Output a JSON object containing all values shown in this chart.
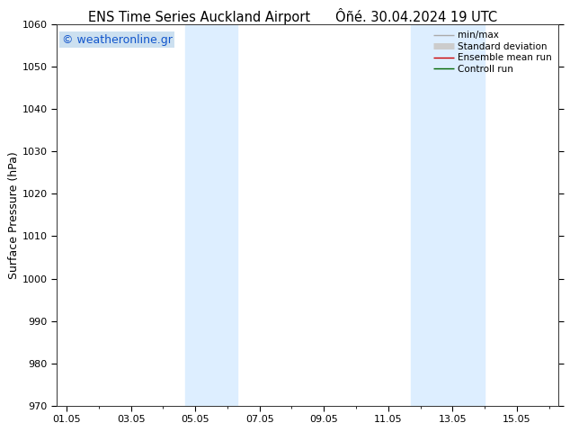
{
  "title_left": "ENS Time Series Auckland Airport",
  "title_right": "Ôñé. 30.04.2024 19 UTC",
  "ylabel": "Surface Pressure (hPa)",
  "ylim": [
    970,
    1060
  ],
  "yticks": [
    970,
    980,
    990,
    1000,
    1010,
    1020,
    1030,
    1040,
    1050,
    1060
  ],
  "xtick_labels": [
    "01.05",
    "03.05",
    "05.05",
    "07.05",
    "09.05",
    "11.05",
    "13.05",
    "15.05"
  ],
  "xtick_positions": [
    0,
    2,
    4,
    6,
    8,
    10,
    12,
    14
  ],
  "xlim": [
    -0.3,
    15.3
  ],
  "shade_bands": [
    {
      "x_start": 3.7,
      "x_end": 5.3,
      "color": "#ddeeff"
    },
    {
      "x_start": 10.7,
      "x_end": 13.0,
      "color": "#ddeeff"
    }
  ],
  "watermark": "© weatheronline.gr",
  "watermark_color": "#1155cc",
  "watermark_bg": "#cce0f0",
  "legend_entries": [
    {
      "label": "min/max",
      "color": "#aaaaaa",
      "lw": 1.0
    },
    {
      "label": "Standard deviation",
      "color": "#cccccc",
      "lw": 5
    },
    {
      "label": "Ensemble mean run",
      "color": "#cc0000",
      "lw": 1.0
    },
    {
      "label": "Controll run",
      "color": "#006600",
      "lw": 1.0
    }
  ],
  "bg_color": "#ffffff",
  "plot_bg_color": "#ffffff",
  "title_fontsize": 10.5,
  "ylabel_fontsize": 9,
  "tick_fontsize": 8,
  "legend_fontsize": 7.5,
  "watermark_fontsize": 9
}
